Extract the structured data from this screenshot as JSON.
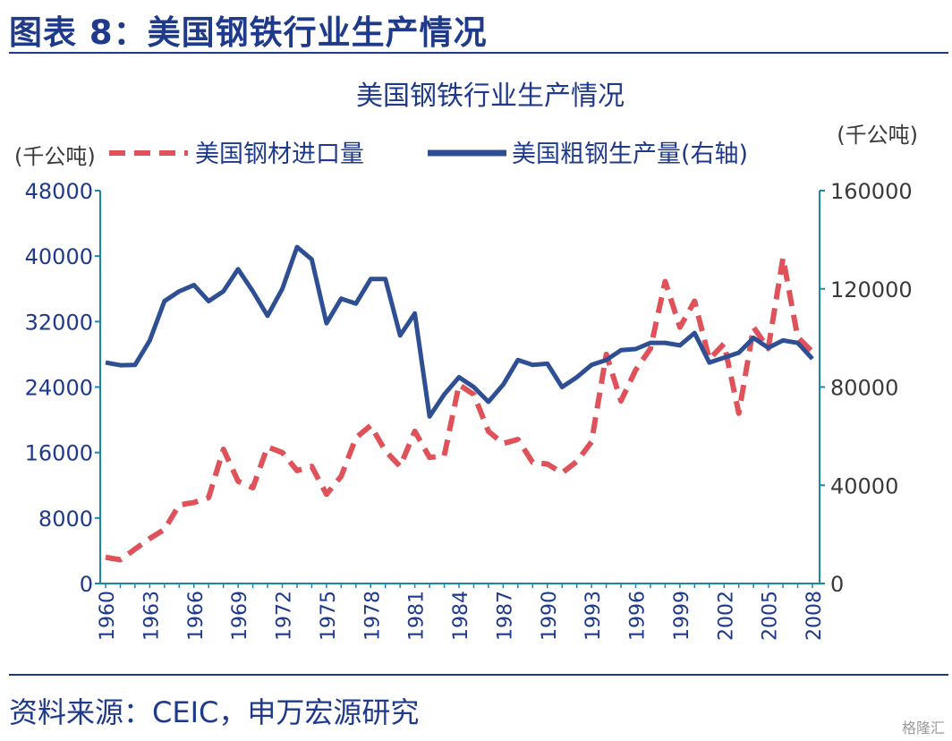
{
  "figure_title": "图表 8：美国钢铁行业生产情况",
  "source_text": "资料来源：CEIC，申万宏源研究",
  "watermark": "格隆汇",
  "chart_data": {
    "type": "line",
    "title": "美国钢铁行业生产情况",
    "ylabel_left": "(千公吨)",
    "ylabel_right": "(千公吨)",
    "ylim_left": [
      0,
      48000
    ],
    "ylim_right": [
      0,
      160000
    ],
    "yticks_left": [
      0,
      8000,
      16000,
      24000,
      32000,
      40000,
      48000
    ],
    "yticks_right": [
      0,
      40000,
      80000,
      120000,
      160000
    ],
    "xticks": [
      1960,
      1963,
      1966,
      1969,
      1972,
      1975,
      1978,
      1981,
      1984,
      1987,
      1990,
      1993,
      1996,
      1999,
      2002,
      2005,
      2008
    ],
    "x": [
      1960,
      1961,
      1962,
      1963,
      1964,
      1965,
      1966,
      1967,
      1968,
      1969,
      1970,
      1971,
      1972,
      1973,
      1974,
      1975,
      1976,
      1977,
      1978,
      1979,
      1980,
      1981,
      1982,
      1983,
      1984,
      1985,
      1986,
      1987,
      1988,
      1989,
      1990,
      1991,
      1992,
      1993,
      1994,
      1995,
      1996,
      1997,
      1998,
      1999,
      2000,
      2001,
      2002,
      2003,
      2004,
      2005,
      2006,
      2007,
      2008
    ],
    "series": [
      {
        "name": "美国钢材进口量",
        "axis": "left",
        "style": "dashed",
        "color": "#e0525a",
        "values": [
          3200,
          2900,
          4200,
          5500,
          6600,
          9600,
          9900,
          10500,
          16400,
          12500,
          11700,
          16700,
          16000,
          13800,
          14300,
          10900,
          13100,
          17800,
          19300,
          16200,
          14300,
          18600,
          15400,
          15600,
          24300,
          23100,
          18600,
          17100,
          17600,
          14800,
          14600,
          13500,
          14900,
          17300,
          28000,
          22300,
          26100,
          28700,
          36900,
          31300,
          34500,
          27400,
          29300,
          20800,
          31300,
          28700,
          39800,
          30100,
          28300
        ]
      },
      {
        "name": "美国粗钢生产量(右轴)",
        "axis": "right",
        "style": "solid",
        "color": "#2f4f94",
        "values": [
          90000,
          88900,
          89000,
          99000,
          115000,
          119000,
          121500,
          115000,
          119000,
          128000,
          119000,
          109000,
          120000,
          137000,
          132000,
          106000,
          116000,
          114000,
          124000,
          124000,
          101000,
          110000,
          68000,
          77000,
          84000,
          80000,
          74000,
          81000,
          91000,
          89000,
          89500,
          80000,
          84000,
          89000,
          91000,
          95000,
          95500,
          98000,
          98000,
          97000,
          102000,
          90000,
          92000,
          94000,
          100000,
          96000,
          99000,
          98000,
          91500
        ]
      }
    ]
  }
}
